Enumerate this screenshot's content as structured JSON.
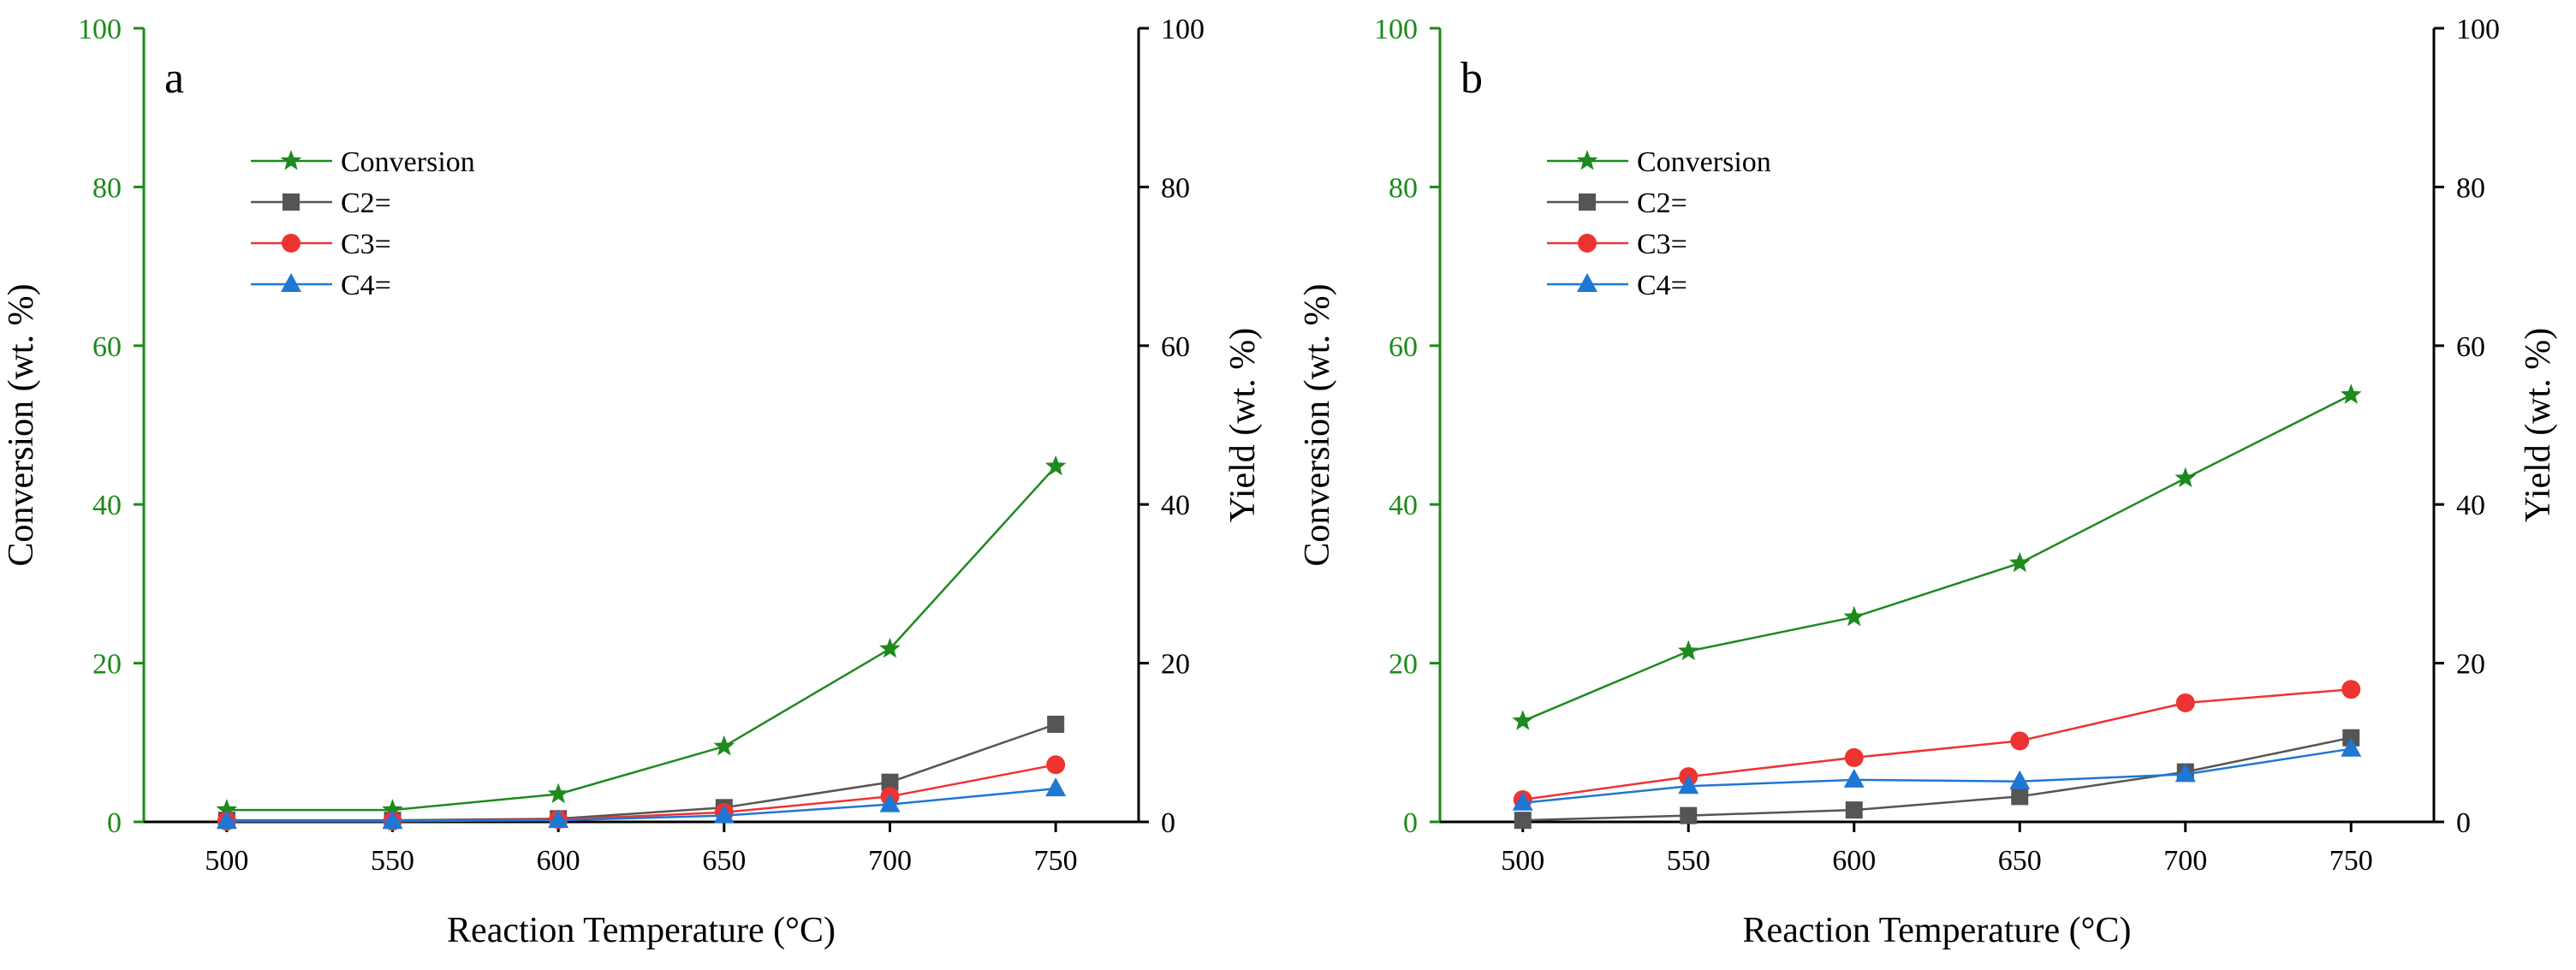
{
  "colors": {
    "axis": "#000000",
    "left_axis": "#1a8a1a",
    "Conversion": "#1e8a1e",
    "C2=": "#555555",
    "C3=": "#ee3333",
    "C4=": "#1f77d4"
  },
  "markers": {
    "Conversion": "star",
    "C2=": "square",
    "C3=": "circle",
    "C4=": "triangle"
  },
  "chart_data": [
    {
      "type": "line",
      "panel_label": "a",
      "xlabel": "Reaction Temperature (°C)",
      "ylabel_left": "Conversion (wt. %)",
      "ylabel_right": "Yield (wt. %)",
      "xlim": [
        475,
        775
      ],
      "ylim": [
        0,
        100
      ],
      "x_ticks": [
        500,
        550,
        600,
        650,
        700,
        750
      ],
      "y_ticks": [
        0,
        20,
        40,
        60,
        80,
        100
      ],
      "legend_position": "upper-left",
      "series": [
        {
          "name": "Conversion",
          "axis": "left",
          "x": [
            500,
            550,
            600,
            650,
            700,
            750
          ],
          "values": [
            1.5,
            1.5,
            3.5,
            9.5,
            21.8,
            44.8
          ]
        },
        {
          "name": "C2=",
          "axis": "right",
          "x": [
            500,
            550,
            600,
            650,
            700,
            750
          ],
          "values": [
            0.2,
            0.2,
            0.4,
            1.8,
            5.0,
            12.3
          ]
        },
        {
          "name": "C3=",
          "axis": "right",
          "x": [
            500,
            550,
            600,
            650,
            700,
            750
          ],
          "values": [
            0.1,
            0.1,
            0.3,
            1.2,
            3.2,
            7.2
          ]
        },
        {
          "name": "C4=",
          "axis": "right",
          "x": [
            500,
            550,
            600,
            650,
            700,
            750
          ],
          "values": [
            0.1,
            0.1,
            0.2,
            0.8,
            2.2,
            4.2
          ]
        }
      ]
    },
    {
      "type": "line",
      "panel_label": "b",
      "xlabel": "Reaction Temperature (°C)",
      "ylabel_left": "Conversion (wt. %)",
      "ylabel_right": "Yield (wt. %)",
      "xlim": [
        475,
        775
      ],
      "ylim": [
        0,
        100
      ],
      "x_ticks": [
        500,
        550,
        600,
        650,
        700,
        750
      ],
      "y_ticks": [
        0,
        20,
        40,
        60,
        80,
        100
      ],
      "legend_position": "upper-left",
      "series": [
        {
          "name": "Conversion",
          "axis": "left",
          "x": [
            500,
            550,
            600,
            650,
            700,
            750
          ],
          "values": [
            12.7,
            21.5,
            25.8,
            32.6,
            43.3,
            53.8
          ]
        },
        {
          "name": "C2=",
          "axis": "right",
          "x": [
            500,
            550,
            600,
            650,
            700,
            750
          ],
          "values": [
            0.2,
            0.8,
            1.5,
            3.2,
            6.3,
            10.6
          ]
        },
        {
          "name": "C3=",
          "axis": "right",
          "x": [
            500,
            550,
            600,
            650,
            700,
            750
          ],
          "values": [
            2.8,
            5.7,
            8.1,
            10.2,
            15.0,
            16.7
          ]
        },
        {
          "name": "C4=",
          "axis": "right",
          "x": [
            500,
            550,
            600,
            650,
            700,
            750
          ],
          "values": [
            2.4,
            4.5,
            5.3,
            5.1,
            6.0,
            9.2
          ]
        }
      ]
    }
  ]
}
